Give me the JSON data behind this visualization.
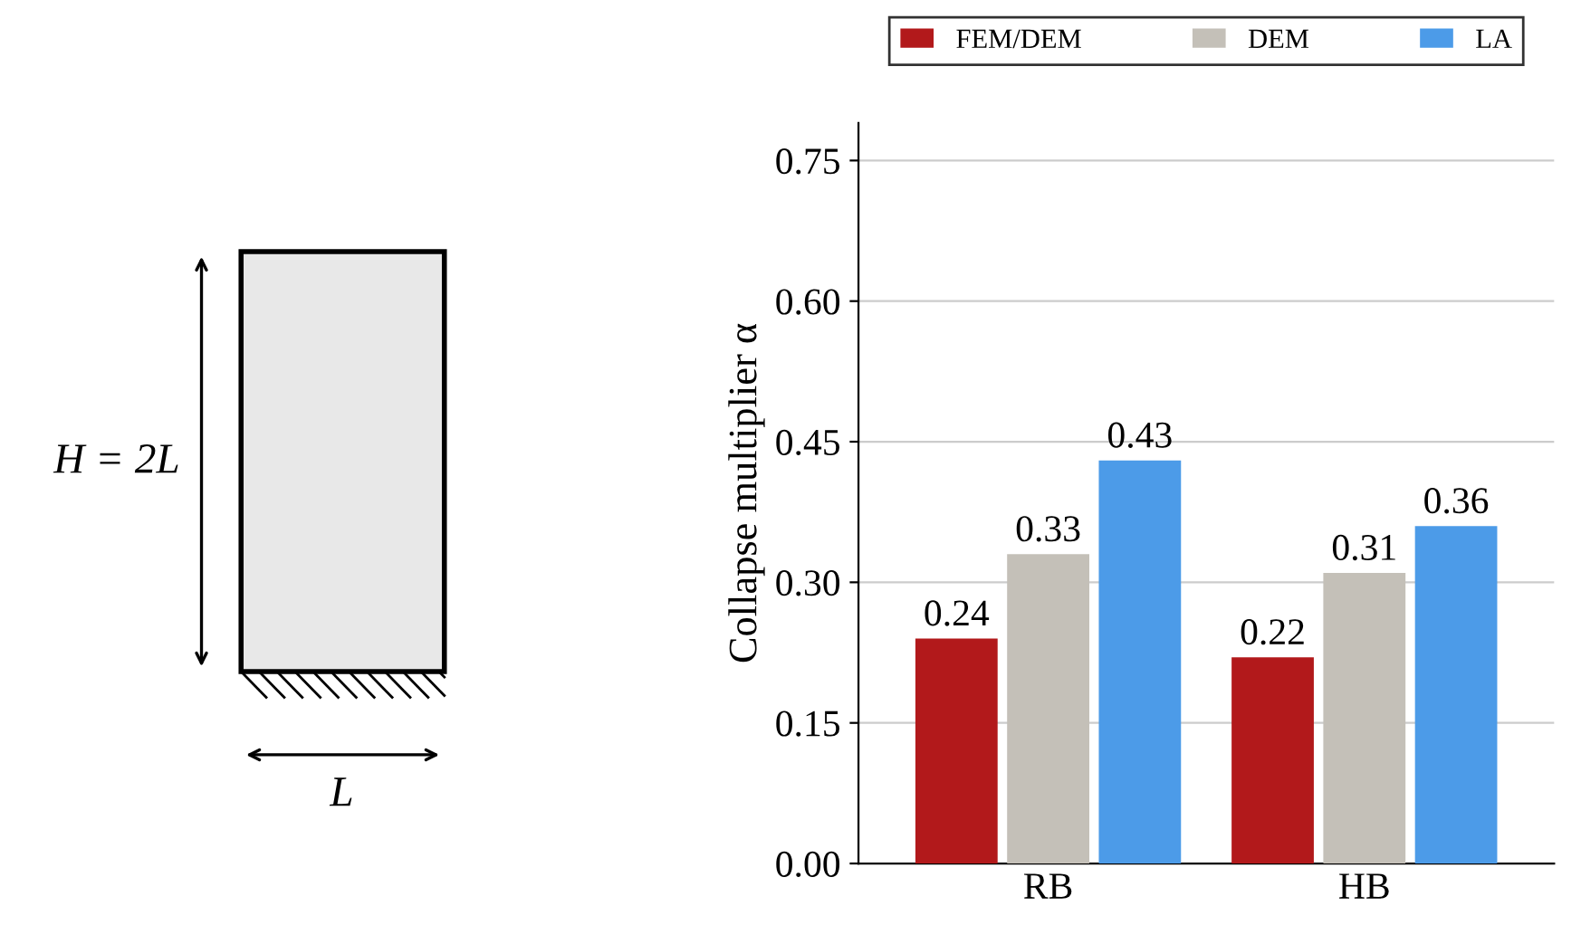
{
  "chart_data": [
    {
      "type": "other",
      "annotations": [
        "H = 2L",
        "L"
      ]
    },
    {
      "type": "bar",
      "categories": [
        "RB",
        "HB"
      ],
      "ylabel": "Collapse multiplier α",
      "ylim": [
        0,
        0.79
      ],
      "yticks": [
        {
          "value": 0,
          "label": "0.00"
        },
        {
          "value": 0.15,
          "label": "0.15"
        },
        {
          "value": 0.3,
          "label": "0.30"
        },
        {
          "value": 0.45,
          "label": "0.45"
        },
        {
          "value": 0.6,
          "label": "0.60"
        },
        {
          "value": 0.75,
          "label": "0.75"
        }
      ],
      "grid": "y",
      "legend": "top",
      "data_labels": true,
      "series": [
        {
          "name": "FEM/DEM",
          "color": "#b2191b",
          "values": [
            0.24,
            0.22
          ]
        },
        {
          "name": "DEM",
          "color": "#c4c0b8",
          "values": [
            0.33,
            0.31
          ]
        },
        {
          "name": "LA",
          "color": "#4c9be8",
          "values": [
            0.43,
            0.36
          ]
        }
      ]
    }
  ]
}
